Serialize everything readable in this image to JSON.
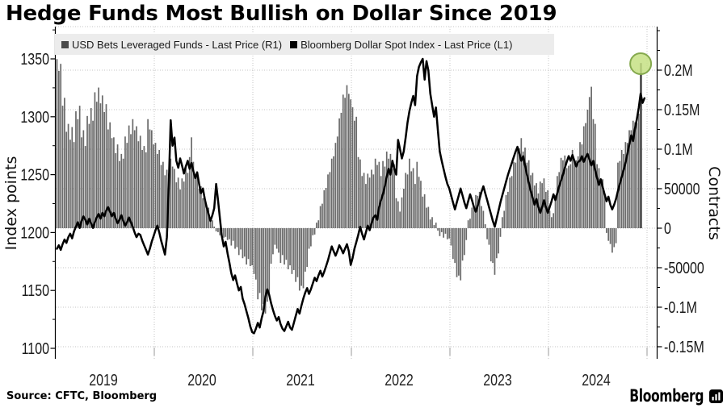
{
  "title": "Hedge Funds Most Bullish on Dollar Since 2019",
  "source": "Source: CFTC, Bloomberg",
  "brand": {
    "name": "Bloomberg"
  },
  "legend": {
    "items": [
      {
        "label": "USD Bets Leveraged Funds - Last Price (R1)",
        "marker_color": "#4a4a4a"
      },
      {
        "label": "Bloomberg Dollar Spot Index - Last Price (L1)",
        "marker_color": "#000000"
      }
    ]
  },
  "left_axis": {
    "title": "Index points",
    "tick_labels": [
      "1350",
      "1300",
      "1250",
      "1200",
      "1150",
      "1100"
    ],
    "tick_values": [
      1350,
      1300,
      1250,
      1200,
      1150,
      1100
    ]
  },
  "right_axis": {
    "title": "Contracts",
    "tick_labels": [
      "0.2M",
      "0.15M",
      "0.1M",
      "50000",
      "0",
      "-50000",
      "-0.1M",
      "-0.15M"
    ],
    "tick_values": [
      200000,
      150000,
      100000,
      50000,
      0,
      -50000,
      -100000,
      -150000
    ]
  },
  "x_axis": {
    "year_labels": [
      "2019",
      "2020",
      "2021",
      "2022",
      "2023",
      "2024"
    ]
  },
  "highlight": {
    "shape": "circle",
    "fill": "#c5e084",
    "stroke": "#85a94e"
  },
  "colors": {
    "bar": "#696969",
    "last_bar": "#383838",
    "line": "#000000",
    "grid": "#c6c6c6",
    "legend_bg": "#ececec"
  },
  "chart_data": {
    "type": "bar+line",
    "x_start_year": 2019,
    "x_end_year": 2025,
    "frequency": "weekly",
    "left_axis_range": [
      1093,
      1368
    ],
    "right_axis_range": [
      -165000,
      255000
    ],
    "series": [
      {
        "name": "USD Bets Leveraged Funds - Last Price (R1)",
        "axis": "right",
        "type": "bar",
        "unit": "contracts",
        "values": [
          214000,
          199000,
          208000,
          155000,
          165000,
          122000,
          132000,
          112000,
          128000,
          109000,
          148000,
          138000,
          155000,
          115000,
          124000,
          104000,
          142000,
          132000,
          152000,
          136000,
          172000,
          160000,
          178000,
          158000,
          168000,
          147000,
          157000,
          125000,
          134000,
          114000,
          115000,
          95000,
          106000,
          85000,
          94000,
          88000,
          116000,
          108000,
          130000,
          119000,
          138000,
          124000,
          129000,
          110000,
          117000,
          99000,
          104000,
          96000,
          138000,
          125000,
          124000,
          106000,
          108000,
          94000,
          99000,
          80000,
          84000,
          67000,
          74000,
          69000,
          88000,
          78000,
          75000,
          58000,
          64000,
          49000,
          63000,
          59000,
          76000,
          70000,
          90000,
          115000,
          84000,
          66000,
          67000,
          50000,
          53000,
          38000,
          40000,
          24000,
          26000,
          12000,
          10000,
          2000,
          -4000,
          -5000,
          -9000,
          -4000,
          -12000,
          -11000,
          -15000,
          -14000,
          -22000,
          -16000,
          -26000,
          -24000,
          -34000,
          -27000,
          -38000,
          -36000,
          -46000,
          -39000,
          -48000,
          -47000,
          -58000,
          -65000,
          -90000,
          -82000,
          -104000,
          -96000,
          -108000,
          -93000,
          -84000,
          -45000,
          -33000,
          -21000,
          -26000,
          -31000,
          -44000,
          -34000,
          -46000,
          -40000,
          -52000,
          -47000,
          -58000,
          -53000,
          -68000,
          -62000,
          -79000,
          -73000,
          -76000,
          -55000,
          -49000,
          -26000,
          -23000,
          -9000,
          -8000,
          7000,
          10000,
          28000,
          31000,
          48000,
          51000,
          68000,
          71000,
          88000,
          91000,
          108000,
          116000,
          139000,
          146000,
          169000,
          165000,
          181000,
          170000,
          163000,
          153000,
          136000,
          141000,
          90000,
          87000,
          66000,
          70000,
          56000,
          69000,
          64000,
          74000,
          68000,
          88000,
          80000,
          84000,
          66000,
          85000,
          78000,
          97000,
          88000,
          94000,
          75000,
          81000,
          38000,
          34000,
          21000,
          39000,
          50000,
          70000,
          68000,
          88000,
          72000,
          76000,
          56000,
          84000,
          65000,
          60000,
          40000,
          43000,
          26000,
          27000,
          11000,
          14000,
          4000,
          7000,
          -3000,
          -10000,
          -5000,
          -12000,
          -7000,
          -14000,
          -13000,
          -22000,
          -39000,
          -44000,
          -62000,
          -60000,
          -66000,
          -41000,
          -34000,
          -15000,
          10000,
          12000,
          26000,
          27000,
          42000,
          41000,
          46000,
          28000,
          22000,
          5000,
          -14000,
          -21000,
          -42000,
          -44000,
          -59000,
          -38000,
          -32000,
          -11000,
          14000,
          22000,
          42000,
          46000,
          64000,
          66000,
          84000,
          83000,
          99000,
          101000,
          114000,
          97000,
          102000,
          83000,
          86000,
          67000,
          70000,
          54000,
          57000,
          44000,
          59000,
          57000,
          63000,
          46000,
          48000,
          22000,
          14000,
          19000,
          42000,
          66000,
          71000,
          89000,
          86000,
          92000,
          76000,
          79000,
          81000,
          99000,
          86000,
          86000,
          91000,
          109000,
          106000,
          129000,
          133000,
          150000,
          166000,
          179000,
          138000,
          132000,
          81000,
          76000,
          61000,
          62000,
          44000,
          -6000,
          -16000,
          -20000,
          -31000,
          -24000,
          -19000,
          83000,
          85000,
          99000,
          94000,
          109000,
          108000,
          124000,
          124000,
          136000,
          134000,
          133000,
          145000,
          209000
        ]
      },
      {
        "name": "Bloomberg Dollar Spot Index - Last Price (L1)",
        "axis": "left",
        "type": "line",
        "unit": "index points",
        "values": [
          1186,
          1189,
          1185,
          1190,
          1194,
          1191,
          1196,
          1199,
          1195,
          1201,
          1205,
          1209,
          1204,
          1210,
          1214,
          1211,
          1207,
          1212,
          1208,
          1204,
          1209,
          1213,
          1216,
          1212,
          1217,
          1214,
          1219,
          1222,
          1218,
          1214,
          1217,
          1212,
          1208,
          1211,
          1215,
          1210,
          1206,
          1209,
          1213,
          1209,
          1205,
          1200,
          1196,
          1199,
          1198,
          1193,
          1189,
          1185,
          1181,
          1186,
          1192,
          1197,
          1202,
          1206,
          1200,
          1193,
          1187,
          1181,
          1196,
          1240,
          1297,
          1275,
          1282,
          1262,
          1256,
          1264,
          1258,
          1251,
          1257,
          1262,
          1255,
          1260,
          1253,
          1247,
          1252,
          1242,
          1234,
          1238,
          1229,
          1222,
          1216,
          1210,
          1215,
          1221,
          1242,
          1228,
          1212,
          1197,
          1188,
          1192,
          1182,
          1174,
          1165,
          1159,
          1163,
          1156,
          1150,
          1153,
          1143,
          1138,
          1132,
          1126,
          1119,
          1114,
          1113,
          1117,
          1122,
          1118,
          1126,
          1132,
          1145,
          1151,
          1146,
          1139,
          1133,
          1128,
          1124,
          1127,
          1121,
          1117,
          1115,
          1119,
          1123,
          1118,
          1116,
          1122,
          1128,
          1134,
          1130,
          1137,
          1143,
          1148,
          1152,
          1147,
          1151,
          1156,
          1161,
          1158,
          1163,
          1167,
          1162,
          1166,
          1171,
          1176,
          1182,
          1188,
          1184,
          1180,
          1184,
          1189,
          1186,
          1182,
          1186,
          1190,
          1184,
          1172,
          1178,
          1186,
          1192,
          1198,
          1205,
          1199,
          1194,
          1200,
          1206,
          1202,
          1208,
          1213,
          1215,
          1211,
          1222,
          1228,
          1233,
          1240,
          1248,
          1255,
          1250,
          1262,
          1255,
          1250,
          1280,
          1272,
          1264,
          1270,
          1282,
          1295,
          1305,
          1312,
          1318,
          1310,
          1335,
          1343,
          1347,
          1350,
          1332,
          1348,
          1340,
          1320,
          1310,
          1300,
          1308,
          1288,
          1270,
          1262,
          1255,
          1248,
          1242,
          1238,
          1232,
          1226,
          1220,
          1226,
          1232,
          1238,
          1232,
          1226,
          1221,
          1227,
          1233,
          1228,
          1222,
          1218,
          1223,
          1229,
          1235,
          1240,
          1234,
          1228,
          1222,
          1216,
          1210,
          1205,
          1212,
          1219,
          1226,
          1232,
          1238,
          1244,
          1250,
          1255,
          1260,
          1265,
          1270,
          1274,
          1268,
          1262,
          1266,
          1258,
          1250,
          1243,
          1236,
          1230,
          1224,
          1229,
          1222,
          1217,
          1222,
          1228,
          1222,
          1217,
          1222,
          1227,
          1233,
          1228,
          1234,
          1240,
          1245,
          1250,
          1256,
          1261,
          1266,
          1262,
          1267,
          1262,
          1257,
          1261,
          1262,
          1266,
          1261,
          1265,
          1268,
          1263,
          1258,
          1262,
          1254,
          1247,
          1241,
          1246,
          1239,
          1233,
          1227,
          1231,
          1224,
          1220,
          1224,
          1229,
          1236,
          1242,
          1248,
          1254,
          1260,
          1268,
          1276,
          1284,
          1279,
          1290,
          1298,
          1308,
          1320,
          1312,
          1316
        ]
      }
    ]
  }
}
